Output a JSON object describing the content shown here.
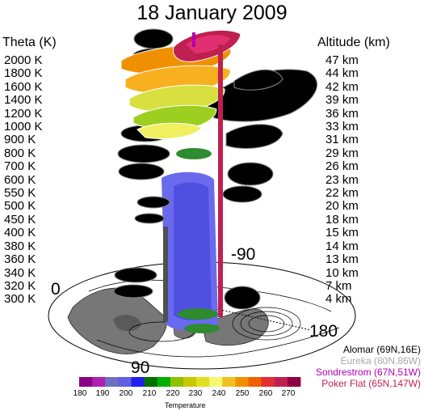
{
  "title": "18 January 2009",
  "left_header": "Theta (K)",
  "right_header": "Altitude (km)",
  "theta_levels": [
    "2000 K",
    "1800 K",
    "1600 K",
    "1400 K",
    "1200 K",
    "1000 K",
    "900 K",
    "800 K",
    "700 K",
    "600 K",
    "550 K",
    "500 K",
    "450 K",
    "400 K",
    "380 K",
    "360 K",
    "340 K",
    "320 K",
    "300 K"
  ],
  "altitudes": [
    "47 km",
    "44 km",
    "42 km",
    "39 km",
    "36 km",
    "33 km",
    "31 km",
    "29 km",
    "26 km",
    "23 km",
    "22 km",
    "20 km",
    "18 km",
    "15 km",
    "14 km",
    "13 km",
    "10 km",
    "7 km",
    "4 km"
  ],
  "longitude_labels": {
    "left": "0",
    "right": "180",
    "top": "-90",
    "bottom": "90"
  },
  "sites": [
    {
      "label": "Alomar (69N,16E)",
      "color": "#505050"
    },
    {
      "label": "Eureka (80N,86W)",
      "color": "#a8a8a8"
    },
    {
      "label": "Sondrestrom (67N,51W)",
      "color": "#b000b0"
    },
    {
      "label": "Poker Flat (65N,147W)",
      "color": "#c02050"
    }
  ],
  "colorbar": {
    "label": "Temperature",
    "ticks": [
      "180",
      "190",
      "200",
      "210",
      "220",
      "230",
      "240",
      "250",
      "260",
      "270"
    ],
    "colors": [
      "#880088",
      "#b020b0",
      "#7070c0",
      "#6060e0",
      "#2020f0",
      "#007000",
      "#00b000",
      "#90c000",
      "#c8c800",
      "#e0e020",
      "#f8f870",
      "#f0c020",
      "#f09000",
      "#f06000",
      "#e03030",
      "#c02050",
      "#900040"
    ]
  }
}
